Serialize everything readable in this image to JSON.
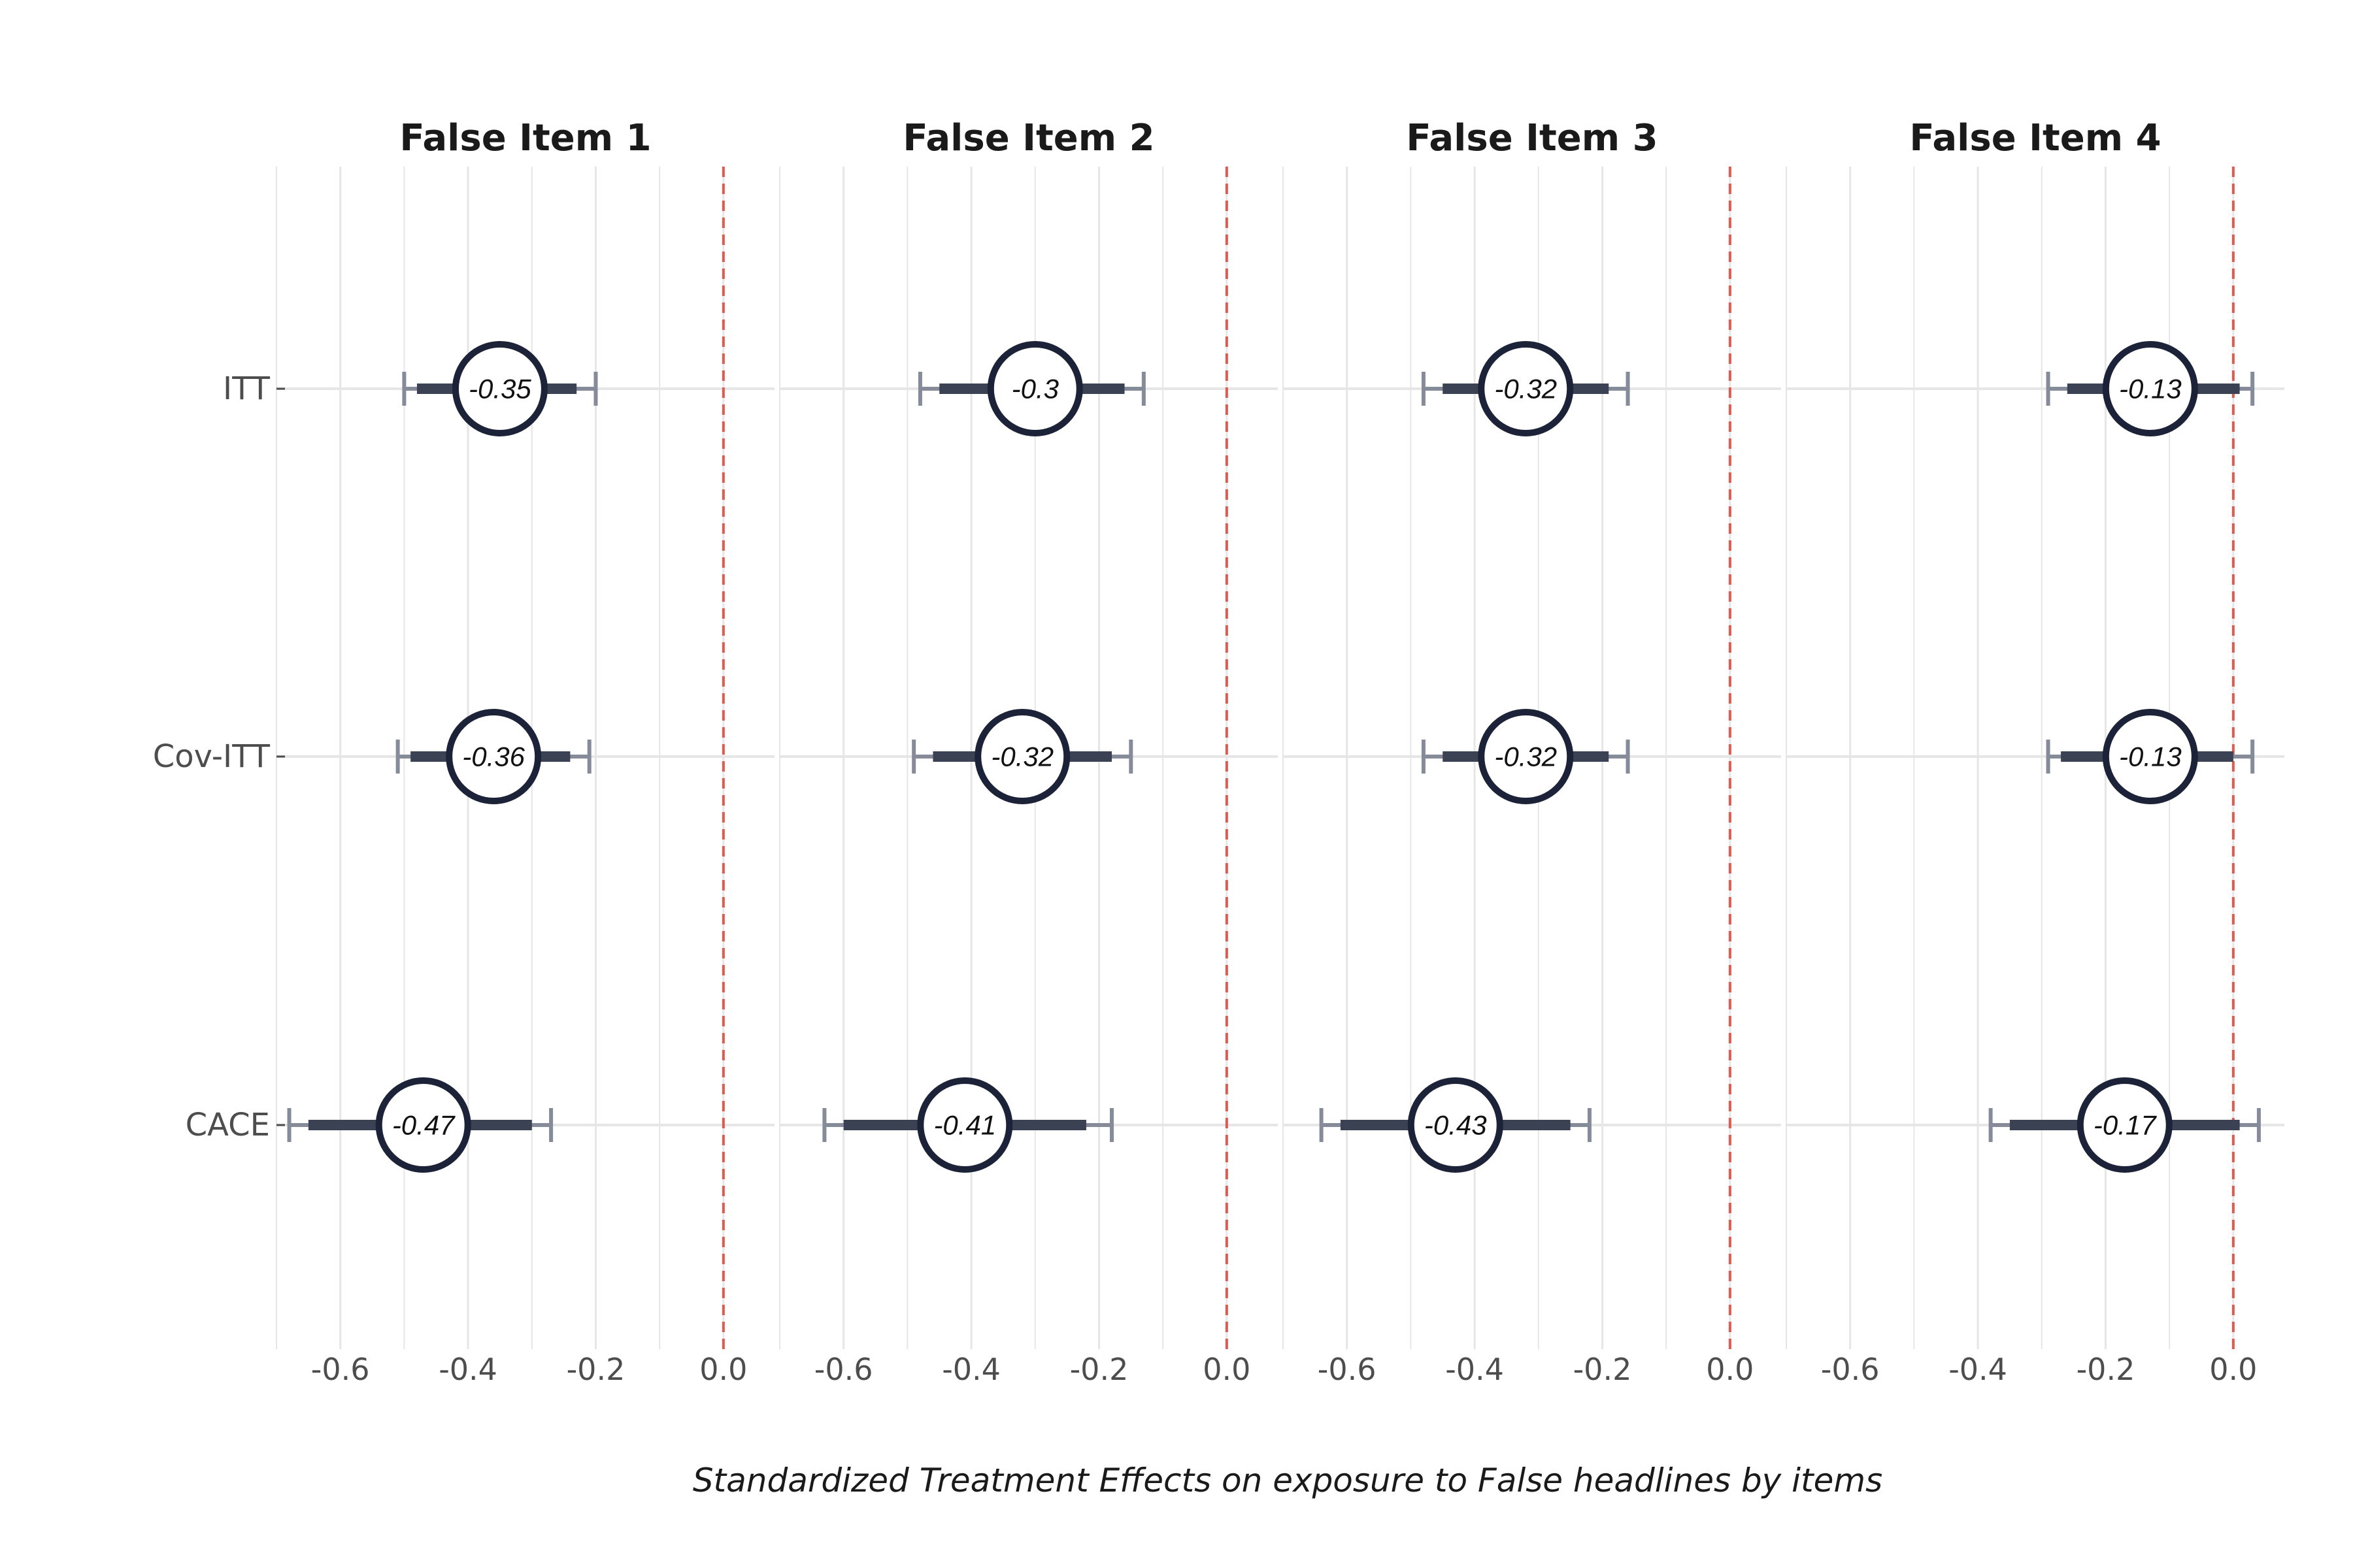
{
  "chart_data": {
    "type": "forest",
    "xlabel": "Standardized Treatment Effects on exposure to False headlines by items",
    "row_labels": [
      "ITT",
      "Cov-ITT",
      "CACE"
    ],
    "x_ticks": [
      -0.6,
      -0.4,
      -0.2,
      0.0
    ],
    "x_tick_labels": [
      "-0.6",
      "-0.4",
      "-0.2",
      "0.0"
    ],
    "xlim": [
      -0.7,
      0.08
    ],
    "reference_line": 0,
    "colors": {
      "point": "#1c2237",
      "inner_ci": "#3a4254",
      "outer_ci": "#858b99",
      "reference": "#e05a4f",
      "grid": "#e6e6e6"
    },
    "panels": [
      {
        "title": "False Item 1",
        "estimates": [
          {
            "row": "ITT",
            "value": -0.35,
            "label": "-0.35",
            "ci90": [
              -0.48,
              -0.23
            ],
            "ci95": [
              -0.5,
              -0.2
            ]
          },
          {
            "row": "Cov-ITT",
            "value": -0.36,
            "label": "-0.36",
            "ci90": [
              -0.49,
              -0.24
            ],
            "ci95": [
              -0.51,
              -0.21
            ]
          },
          {
            "row": "CACE",
            "value": -0.47,
            "label": "-0.47",
            "ci90": [
              -0.65,
              -0.3
            ],
            "ci95": [
              -0.68,
              -0.27
            ]
          }
        ]
      },
      {
        "title": "False Item 2",
        "estimates": [
          {
            "row": "ITT",
            "value": -0.3,
            "label": "-0.3",
            "ci90": [
              -0.45,
              -0.16
            ],
            "ci95": [
              -0.48,
              -0.13
            ]
          },
          {
            "row": "Cov-ITT",
            "value": -0.32,
            "label": "-0.32",
            "ci90": [
              -0.46,
              -0.18
            ],
            "ci95": [
              -0.49,
              -0.15
            ]
          },
          {
            "row": "CACE",
            "value": -0.41,
            "label": "-0.41",
            "ci90": [
              -0.6,
              -0.22
            ],
            "ci95": [
              -0.63,
              -0.18
            ]
          }
        ]
      },
      {
        "title": "False Item 3",
        "estimates": [
          {
            "row": "ITT",
            "value": -0.32,
            "label": "-0.32",
            "ci90": [
              -0.45,
              -0.19
            ],
            "ci95": [
              -0.48,
              -0.16
            ]
          },
          {
            "row": "Cov-ITT",
            "value": -0.32,
            "label": "-0.32",
            "ci90": [
              -0.45,
              -0.19
            ],
            "ci95": [
              -0.48,
              -0.16
            ]
          },
          {
            "row": "CACE",
            "value": -0.43,
            "label": "-0.43",
            "ci90": [
              -0.61,
              -0.25
            ],
            "ci95": [
              -0.64,
              -0.22
            ]
          }
        ]
      },
      {
        "title": "False Item 4",
        "estimates": [
          {
            "row": "ITT",
            "value": -0.13,
            "label": "-0.13",
            "ci90": [
              -0.26,
              0.01
            ],
            "ci95": [
              -0.29,
              0.03
            ]
          },
          {
            "row": "Cov-ITT",
            "value": -0.13,
            "label": "-0.13",
            "ci90": [
              -0.27,
              0.0
            ],
            "ci95": [
              -0.29,
              0.03
            ]
          },
          {
            "row": "CACE",
            "value": -0.17,
            "label": "-0.17",
            "ci90": [
              -0.35,
              0.01
            ],
            "ci95": [
              -0.38,
              0.04
            ]
          }
        ]
      }
    ]
  }
}
